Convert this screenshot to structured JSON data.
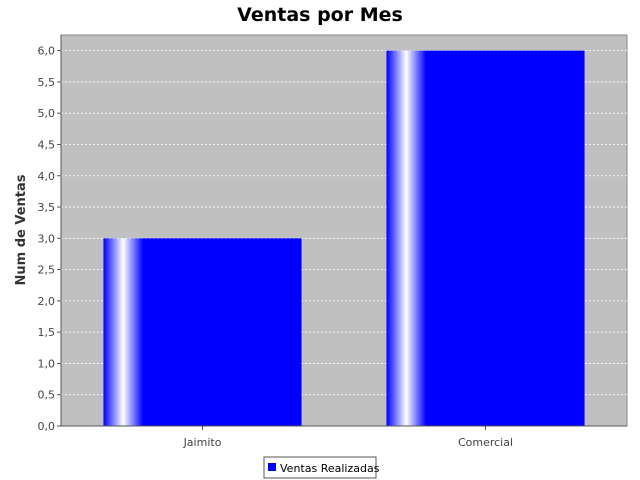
{
  "chart_data": {
    "type": "bar",
    "title": "Ventas por Mes",
    "xlabel": "",
    "ylabel": "Num de Ventas",
    "categories": [
      "Jaimito",
      "Comercial"
    ],
    "series": [
      {
        "name": "Ventas Realizadas",
        "values": [
          3.0,
          6.0
        ]
      }
    ],
    "ylim": [
      0,
      6.25
    ],
    "yticks": [
      "0,0",
      "0,5",
      "1,0",
      "1,5",
      "2,0",
      "2,5",
      "3,0",
      "3,5",
      "4,0",
      "4,5",
      "5,0",
      "5,5",
      "6,0"
    ],
    "grid": true,
    "legend_position": "bottom",
    "colors": {
      "bar": "#0000ff",
      "plot_background": "#c0c0c0",
      "grid": "#ffffff"
    }
  }
}
